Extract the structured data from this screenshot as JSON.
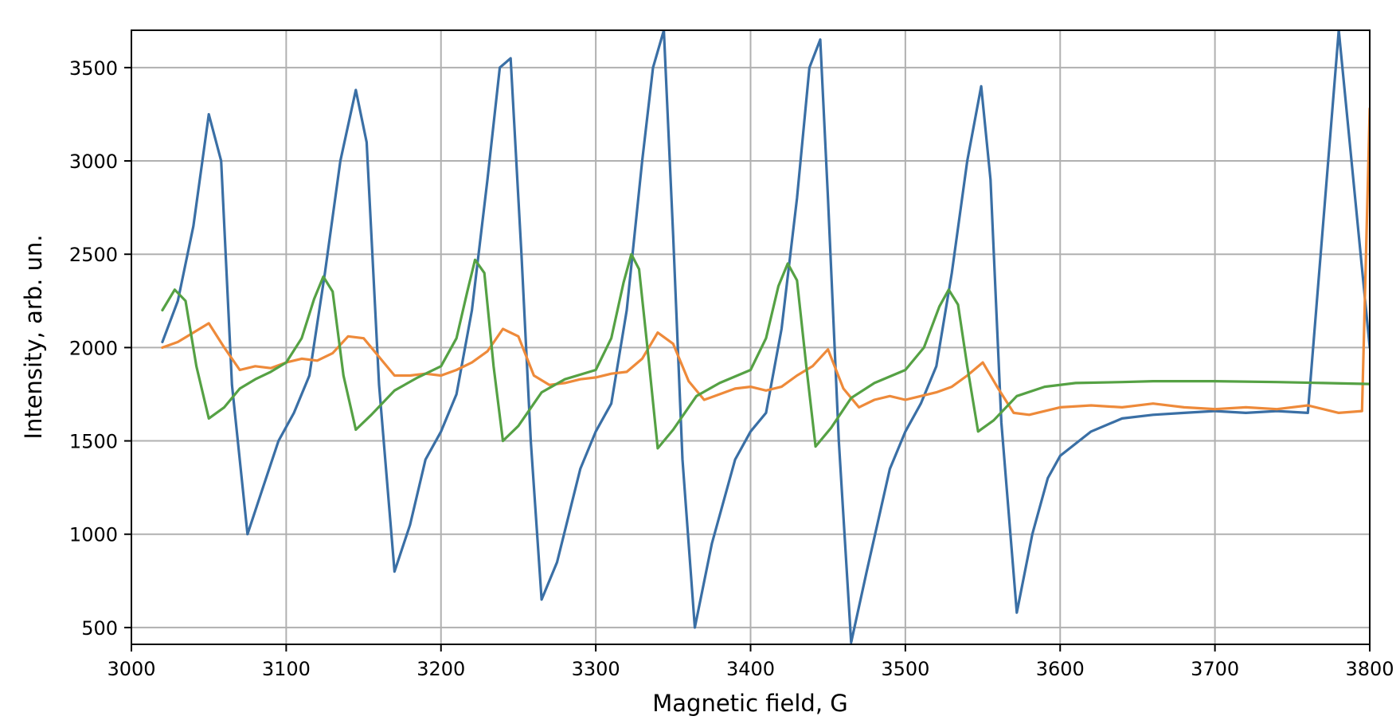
{
  "chart_data": {
    "type": "line",
    "title": "",
    "xlabel": "Magnetic field, G",
    "ylabel": "Intensity, arb. un.",
    "xlim": [
      3000,
      3800
    ],
    "ylim": [
      410,
      3700
    ],
    "xticks": [
      3000,
      3100,
      3200,
      3300,
      3400,
      3500,
      3600,
      3700,
      3800
    ],
    "yticks": [
      500,
      1000,
      1500,
      2000,
      2500,
      3000,
      3500
    ],
    "grid": true,
    "legend": "none",
    "series": [
      {
        "color": "#3a6fa5",
        "x": [
          3020,
          3030,
          3040,
          3050,
          3058,
          3065,
          3075,
          3085,
          3095,
          3105,
          3115,
          3125,
          3135,
          3145,
          3152,
          3160,
          3170,
          3180,
          3190,
          3200,
          3210,
          3220,
          3230,
          3238,
          3245,
          3252,
          3258,
          3265,
          3275,
          3290,
          3300,
          3310,
          3320,
          3330,
          3337,
          3344,
          3350,
          3356,
          3364,
          3375,
          3390,
          3400,
          3410,
          3420,
          3430,
          3438,
          3445,
          3450,
          3457,
          3465,
          3475,
          3490,
          3500,
          3510,
          3520,
          3530,
          3540,
          3549,
          3555,
          3562,
          3572,
          3582,
          3592,
          3600,
          3620,
          3640,
          3660,
          3680,
          3700,
          3720,
          3740,
          3760,
          3780,
          3800
        ],
        "y": [
          2030,
          2250,
          2650,
          3250,
          3000,
          1800,
          1000,
          1250,
          1500,
          1650,
          1850,
          2400,
          3000,
          3380,
          3100,
          1800,
          800,
          1050,
          1400,
          1550,
          1750,
          2200,
          2900,
          3500,
          3550,
          2500,
          1500,
          650,
          850,
          1350,
          1550,
          1700,
          2200,
          3000,
          3500,
          3700,
          2600,
          1400,
          500,
          950,
          1400,
          1550,
          1650,
          2100,
          2800,
          3500,
          3650,
          2800,
          1500,
          420,
          800,
          1350,
          1550,
          1700,
          1900,
          2400,
          3000,
          3400,
          2900,
          1600,
          580,
          1000,
          1300,
          1420,
          1550,
          1620,
          1640,
          1650,
          1660,
          1650,
          1660,
          1650,
          3700,
          2000
        ]
      },
      {
        "color": "#ee8a3a",
        "x": [
          3020,
          3030,
          3040,
          3050,
          3060,
          3070,
          3080,
          3090,
          3100,
          3110,
          3120,
          3130,
          3140,
          3150,
          3160,
          3170,
          3180,
          3190,
          3200,
          3210,
          3220,
          3230,
          3240,
          3250,
          3260,
          3270,
          3280,
          3290,
          3300,
          3310,
          3320,
          3330,
          3340,
          3350,
          3360,
          3370,
          3380,
          3390,
          3400,
          3410,
          3420,
          3430,
          3440,
          3450,
          3460,
          3470,
          3480,
          3490,
          3500,
          3510,
          3520,
          3530,
          3540,
          3550,
          3560,
          3570,
          3580,
          3600,
          3620,
          3640,
          3660,
          3680,
          3700,
          3720,
          3740,
          3760,
          3780,
          3795,
          3800
        ],
        "y": [
          2000,
          2030,
          2080,
          2130,
          2000,
          1880,
          1900,
          1890,
          1920,
          1940,
          1930,
          1970,
          2060,
          2050,
          1950,
          1850,
          1850,
          1860,
          1850,
          1880,
          1920,
          1980,
          2100,
          2060,
          1850,
          1800,
          1810,
          1830,
          1840,
          1860,
          1870,
          1940,
          2080,
          2020,
          1820,
          1720,
          1750,
          1780,
          1790,
          1770,
          1790,
          1850,
          1900,
          1990,
          1780,
          1680,
          1720,
          1740,
          1720,
          1740,
          1760,
          1790,
          1850,
          1920,
          1780,
          1650,
          1640,
          1680,
          1690,
          1680,
          1700,
          1680,
          1670,
          1680,
          1670,
          1690,
          1650,
          1660,
          3280
        ]
      },
      {
        "color": "#55a144",
        "x": [
          3020,
          3028,
          3035,
          3042,
          3050,
          3060,
          3070,
          3080,
          3090,
          3100,
          3110,
          3118,
          3124,
          3130,
          3137,
          3145,
          3155,
          3170,
          3185,
          3200,
          3210,
          3217,
          3222,
          3228,
          3234,
          3240,
          3250,
          3265,
          3280,
          3300,
          3310,
          3318,
          3323,
          3328,
          3334,
          3340,
          3350,
          3365,
          3380,
          3400,
          3410,
          3418,
          3424,
          3430,
          3436,
          3442,
          3452,
          3465,
          3480,
          3500,
          3512,
          3522,
          3528,
          3534,
          3540,
          3547,
          3557,
          3572,
          3590,
          3610,
          3640,
          3660,
          3700,
          3740,
          3770,
          3800
        ],
        "y": [
          2200,
          2310,
          2250,
          1900,
          1620,
          1680,
          1780,
          1830,
          1870,
          1920,
          2050,
          2260,
          2380,
          2300,
          1850,
          1560,
          1640,
          1770,
          1840,
          1900,
          2050,
          2300,
          2470,
          2400,
          1900,
          1500,
          1580,
          1760,
          1830,
          1880,
          2050,
          2350,
          2500,
          2420,
          1950,
          1460,
          1560,
          1740,
          1810,
          1880,
          2050,
          2330,
          2450,
          2360,
          1900,
          1470,
          1570,
          1730,
          1810,
          1880,
          2000,
          2220,
          2310,
          2230,
          1900,
          1550,
          1610,
          1740,
          1790,
          1810,
          1815,
          1820,
          1820,
          1815,
          1810,
          1805
        ]
      }
    ]
  }
}
